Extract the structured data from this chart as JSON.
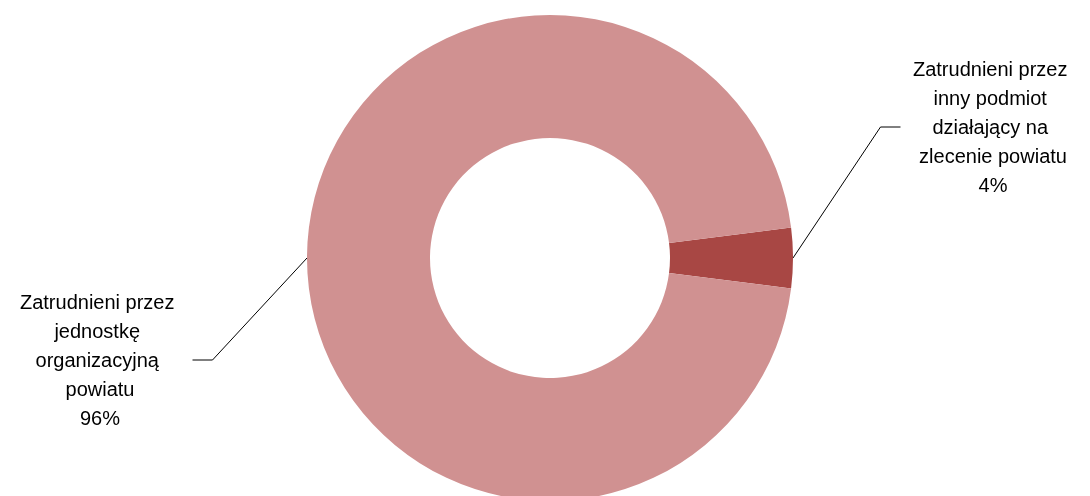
{
  "chart_data": {
    "type": "donut",
    "categories": [
      "Zatrudnieni przez inny podmiot działający na zlecenie powiatu",
      "Zatrudnieni przez jednostkę organizacyjną powiatu"
    ],
    "values": [
      4,
      96
    ],
    "colors": [
      "#a84744",
      "#d09191"
    ],
    "value_labels": [
      "4%",
      "96%"
    ],
    "legend": false
  }
}
